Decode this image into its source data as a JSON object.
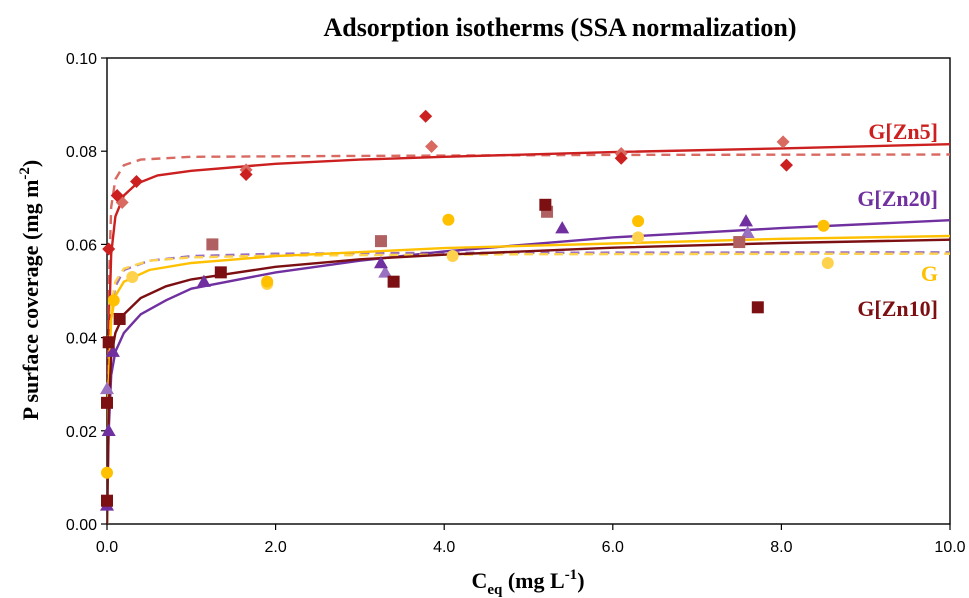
{
  "chart_data": {
    "type": "scatter",
    "title": "Adsorption isotherms (SSA normalization)",
    "xlabel": {
      "main": "C",
      "sub": "eq",
      "units": "(mg L",
      "sup": "-1",
      "close": ")"
    },
    "ylabel": {
      "main": "P surface coverage (mg m",
      "sup": "-2",
      "close": ")"
    },
    "xlim": [
      0,
      10
    ],
    "ylim": [
      0,
      0.1
    ],
    "x_ticks": [
      "0.0",
      "2.0",
      "4.0",
      "6.0",
      "8.0",
      "10.0"
    ],
    "y_ticks": [
      "0.00",
      "0.02",
      "0.04",
      "0.06",
      "0.08",
      "0.10"
    ],
    "grid": false,
    "series": [
      {
        "name": "G[Zn5]",
        "color": "#cc1f1f",
        "light_color": "#d96a62",
        "marker": "diamond",
        "points": [
          [
            0.02,
            0.059
          ],
          [
            0.12,
            0.0705
          ],
          [
            0.35,
            0.0735
          ],
          [
            1.65,
            0.075
          ],
          [
            3.78,
            0.0875
          ],
          [
            6.1,
            0.0785
          ],
          [
            8.06,
            0.077
          ]
        ],
        "replicate_points": [
          [
            0.18,
            0.069
          ],
          [
            1.65,
            0.076
          ],
          [
            3.85,
            0.081
          ],
          [
            6.1,
            0.0795
          ],
          [
            8.02,
            0.082
          ]
        ],
        "fit": [
          [
            0.0,
            0.0
          ],
          [
            0.02,
            0.04
          ],
          [
            0.05,
            0.058
          ],
          [
            0.1,
            0.066
          ],
          [
            0.2,
            0.0705
          ],
          [
            0.35,
            0.073
          ],
          [
            0.6,
            0.0748
          ],
          [
            1.0,
            0.0758
          ],
          [
            2.0,
            0.0773
          ],
          [
            3.0,
            0.0782
          ],
          [
            4.0,
            0.0788
          ],
          [
            6.0,
            0.0798
          ],
          [
            8.0,
            0.0806
          ],
          [
            10.0,
            0.0815
          ]
        ],
        "fit2": [
          [
            0.0,
            0.0
          ],
          [
            0.02,
            0.05
          ],
          [
            0.05,
            0.068
          ],
          [
            0.1,
            0.074
          ],
          [
            0.2,
            0.077
          ],
          [
            0.4,
            0.0782
          ],
          [
            1.0,
            0.0788
          ],
          [
            3.0,
            0.079
          ],
          [
            6.0,
            0.0792
          ],
          [
            10.0,
            0.0793
          ]
        ]
      },
      {
        "name": "G[Zn20]",
        "color": "#7030a0",
        "light_color": "#9a70c0",
        "marker": "triangle",
        "points": [
          [
            0.0,
            0.004
          ],
          [
            0.02,
            0.02
          ],
          [
            0.07,
            0.037
          ],
          [
            1.15,
            0.052
          ],
          [
            3.25,
            0.056
          ],
          [
            5.4,
            0.0635
          ],
          [
            7.58,
            0.065
          ]
        ],
        "replicate_points": [
          [
            0.0,
            0.029
          ],
          [
            3.3,
            0.054
          ],
          [
            7.6,
            0.0625
          ]
        ],
        "fit": [
          [
            0.0,
            0.0
          ],
          [
            0.02,
            0.02
          ],
          [
            0.05,
            0.032
          ],
          [
            0.1,
            0.037
          ],
          [
            0.2,
            0.041
          ],
          [
            0.4,
            0.045
          ],
          [
            0.7,
            0.048
          ],
          [
            1.0,
            0.0505
          ],
          [
            2.0,
            0.054
          ],
          [
            3.0,
            0.0565
          ],
          [
            4.0,
            0.0585
          ],
          [
            6.0,
            0.0615
          ],
          [
            8.0,
            0.0635
          ],
          [
            10.0,
            0.0652
          ]
        ],
        "fit2": [
          [
            0.0,
            0.0
          ],
          [
            0.02,
            0.03
          ],
          [
            0.05,
            0.046
          ],
          [
            0.1,
            0.051
          ],
          [
            0.2,
            0.0545
          ],
          [
            0.5,
            0.0565
          ],
          [
            1.0,
            0.0575
          ],
          [
            2.0,
            0.058
          ],
          [
            4.0,
            0.0582
          ],
          [
            10.0,
            0.0583
          ]
        ]
      },
      {
        "name": "G",
        "color": "#ffc000",
        "light_color": "#ffd24d",
        "marker": "circle",
        "points": [
          [
            0.0,
            0.011
          ],
          [
            0.08,
            0.048
          ],
          [
            1.9,
            0.052
          ],
          [
            4.05,
            0.0653
          ],
          [
            6.3,
            0.065
          ],
          [
            8.5,
            0.064
          ]
        ],
        "replicate_points": [
          [
            0.3,
            0.053
          ],
          [
            1.9,
            0.0515
          ],
          [
            4.1,
            0.0575
          ],
          [
            6.3,
            0.0615
          ],
          [
            8.55,
            0.056
          ]
        ],
        "fit": [
          [
            0.0,
            0.0
          ],
          [
            0.02,
            0.03
          ],
          [
            0.05,
            0.044
          ],
          [
            0.1,
            0.049
          ],
          [
            0.2,
            0.052
          ],
          [
            0.5,
            0.0545
          ],
          [
            1.0,
            0.056
          ],
          [
            2.0,
            0.0575
          ],
          [
            4.0,
            0.0592
          ],
          [
            6.0,
            0.0602
          ],
          [
            8.0,
            0.0612
          ],
          [
            10.0,
            0.0618
          ]
        ],
        "fit2": [
          [
            0.0,
            0.0
          ],
          [
            0.02,
            0.03
          ],
          [
            0.05,
            0.047
          ],
          [
            0.1,
            0.052
          ],
          [
            0.2,
            0.0548
          ],
          [
            0.5,
            0.0565
          ],
          [
            1.0,
            0.0572
          ],
          [
            2.0,
            0.0576
          ],
          [
            5.0,
            0.0579
          ],
          [
            10.0,
            0.058
          ]
        ]
      },
      {
        "name": "G[Zn10]",
        "color": "#7b0f12",
        "light_color": "#b06060",
        "marker": "square",
        "points": [
          [
            0.0,
            0.005
          ],
          [
            0.0,
            0.026
          ],
          [
            0.02,
            0.039
          ],
          [
            0.15,
            0.044
          ],
          [
            1.35,
            0.054
          ],
          [
            3.4,
            0.052
          ],
          [
            5.2,
            0.0685
          ],
          [
            7.72,
            0.0465
          ]
        ],
        "replicate_points": [
          [
            1.25,
            0.06
          ],
          [
            3.25,
            0.0607
          ],
          [
            5.22,
            0.067
          ],
          [
            7.5,
            0.0605
          ]
        ],
        "fit": [
          [
            0.0,
            0.0
          ],
          [
            0.02,
            0.025
          ],
          [
            0.05,
            0.036
          ],
          [
            0.1,
            0.041
          ],
          [
            0.2,
            0.045
          ],
          [
            0.4,
            0.0485
          ],
          [
            0.7,
            0.051
          ],
          [
            1.0,
            0.0525
          ],
          [
            2.0,
            0.0552
          ],
          [
            3.0,
            0.0568
          ],
          [
            4.0,
            0.0578
          ],
          [
            6.0,
            0.0593
          ],
          [
            8.0,
            0.0603
          ],
          [
            10.0,
            0.061
          ]
        ]
      }
    ],
    "series_labels": [
      "G[Zn5]",
      "G[Zn20]",
      "G",
      "G[Zn10]"
    ]
  }
}
